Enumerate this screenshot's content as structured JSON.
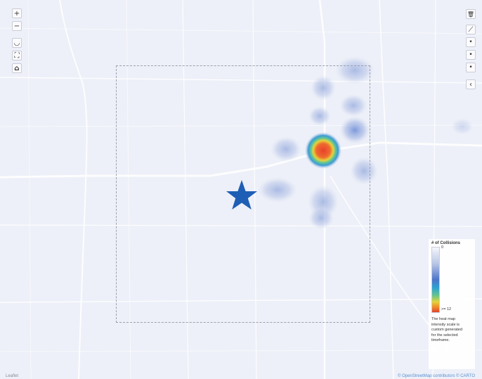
{
  "map": {
    "controls_left": [
      {
        "name": "zoom-in-button",
        "icon": "plus-icon",
        "glyph": "+"
      },
      {
        "name": "zoom-out-button",
        "icon": "minus-icon",
        "glyph": "−"
      },
      {
        "name": "map-style-button",
        "icon": "layers-icon",
        "glyph": "◡"
      },
      {
        "name": "fullscreen-button",
        "icon": "expand-icon",
        "glyph": "⛶"
      },
      {
        "name": "home-button",
        "icon": "home-icon",
        "glyph": "⌂"
      }
    ],
    "controls_right": [
      {
        "name": "trash-button",
        "icon": "trash-icon",
        "glyph": "🗑"
      },
      {
        "name": "measure-button",
        "icon": "ruler-icon",
        "glyph": "⟋"
      },
      {
        "name": "draw-point-button",
        "icon": "point-icon",
        "glyph": "•"
      },
      {
        "name": "draw-point-2-button",
        "icon": "point-icon",
        "glyph": "•"
      },
      {
        "name": "draw-point-3-button",
        "icon": "point-icon",
        "glyph": "•"
      },
      {
        "name": "collapse-button",
        "icon": "chevron-icon",
        "glyph": "‹"
      }
    ],
    "marker_color": "#1f5eb5",
    "legend": {
      "title": "# of Collisions",
      "min_label": "0",
      "max_label": ">= 12",
      "note": "The heat map intensity scale is custom generated for the selected timeframe."
    },
    "attribution_left": "Leaflet",
    "attribution_right": "© OpenStreetMap contributors © CARTO"
  }
}
